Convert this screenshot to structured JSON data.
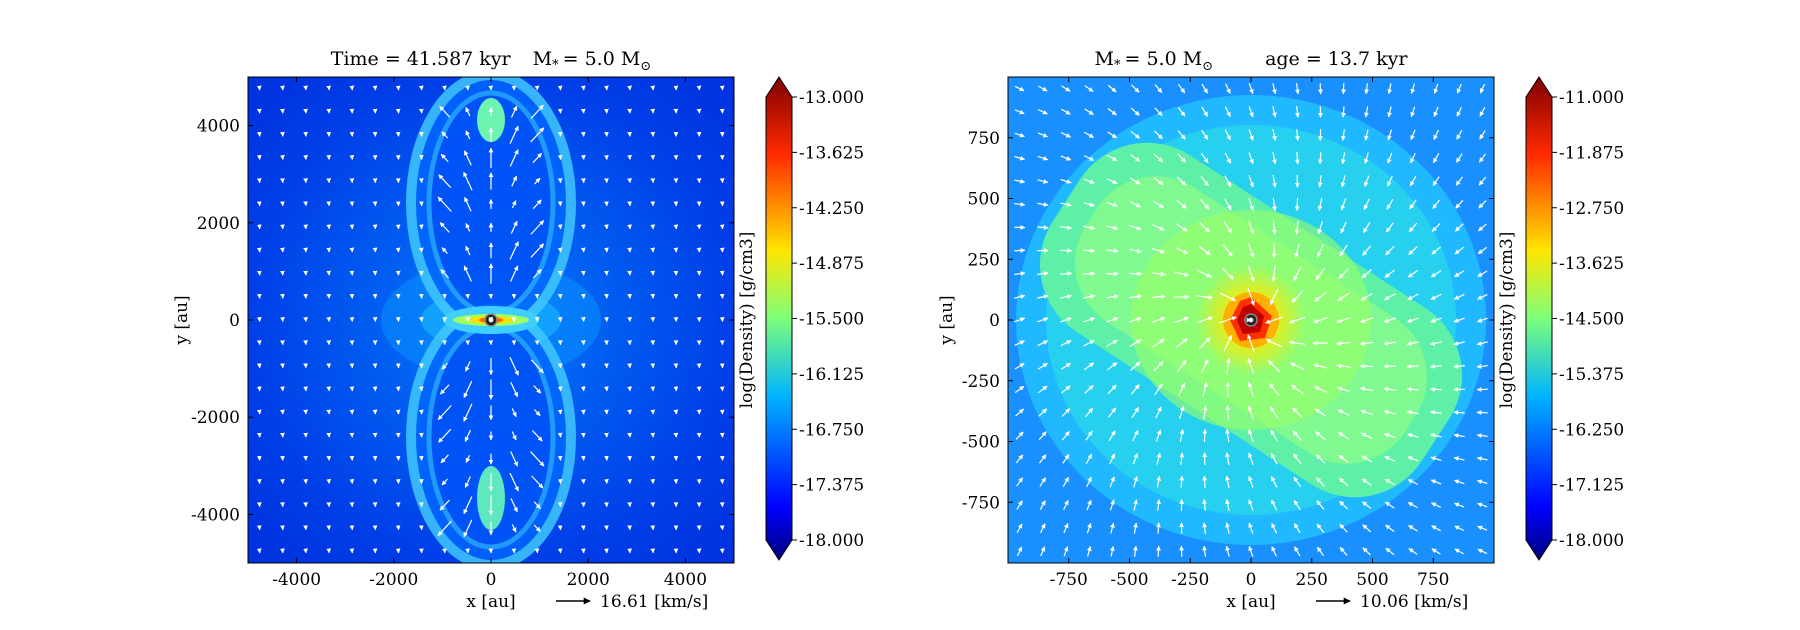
{
  "chart_data": [
    {
      "type": "heatmap",
      "title": "Time = 41.587 kyr    M$_*$ = 5.0 M$_\\odot$",
      "title_parts": {
        "time_label": "Time = 41.587 kyr",
        "mass_label": "M",
        "mass_sub": "*",
        "mass_value": "= 5.0 M",
        "mass_unit_sub": "⊙"
      },
      "xlabel": "x [au]",
      "ylabel": "y [au]",
      "xlim": [
        -5000,
        5000
      ],
      "ylim": [
        -5000,
        5000
      ],
      "xticks": [
        -4000,
        -2000,
        0,
        2000,
        4000
      ],
      "yticks": [
        -4000,
        -2000,
        0,
        2000,
        4000
      ],
      "xtick_labels": [
        "-4000",
        "-2000",
        "0",
        "2000",
        "4000"
      ],
      "ytick_labels": [
        "-4000",
        "-2000",
        "0",
        "2000",
        "4000"
      ],
      "quiver_key": {
        "label": "16.61 [km/s]"
      },
      "colorbar": {
        "label": "log(Density) [g/cm3]",
        "range": [
          -18.0,
          -13.0
        ],
        "ticks": [
          -13.0,
          -13.625,
          -14.25,
          -14.875,
          -15.5,
          -16.125,
          -16.75,
          -17.375,
          -18.0
        ],
        "tick_labels": [
          "-13.000",
          "-13.625",
          "-14.250",
          "-14.875",
          "-15.500",
          "-16.125",
          "-16.750",
          "-17.375",
          "-18.000"
        ]
      },
      "colormap": "jet",
      "structure": "bipolar outflow cavities with dense equatorial disk and central star",
      "vector_arrows": true
    },
    {
      "type": "heatmap",
      "title_parts": {
        "mass_label": "M",
        "mass_sub": "*",
        "mass_value": "= 5.0 M",
        "mass_unit_sub": "⊙",
        "age_label": "age = 13.7 kyr"
      },
      "xlabel": "x [au]",
      "ylabel": "y [au]",
      "xlim": [
        -1000,
        1000
      ],
      "ylim": [
        -1000,
        1000
      ],
      "xticks": [
        -750,
        -500,
        -250,
        0,
        250,
        500,
        750
      ],
      "yticks": [
        -750,
        -500,
        -250,
        0,
        250,
        500,
        750
      ],
      "xtick_labels": [
        "-750",
        "-500",
        "-250",
        "0",
        "250",
        "500",
        "750"
      ],
      "ytick_labels": [
        "-750",
        "-500",
        "-250",
        "0",
        "250",
        "500",
        "750"
      ],
      "quiver_key": {
        "label": "10.06 [km/s]"
      },
      "colorbar": {
        "label": "log(Density) [g/cm3]",
        "range": [
          -18.0,
          -11.0
        ],
        "ticks": [
          -11.0,
          -11.875,
          -12.75,
          -13.625,
          -14.5,
          -15.375,
          -16.25,
          -17.125,
          -18.0
        ],
        "tick_labels": [
          "-11.000",
          "-11.875",
          "-12.750",
          "-13.625",
          "-14.500",
          "-15.375",
          "-16.250",
          "-17.125",
          "-18.000"
        ]
      },
      "colormap": "jet",
      "structure": "tilted disk with dense red core at center",
      "vector_arrows": true
    }
  ]
}
